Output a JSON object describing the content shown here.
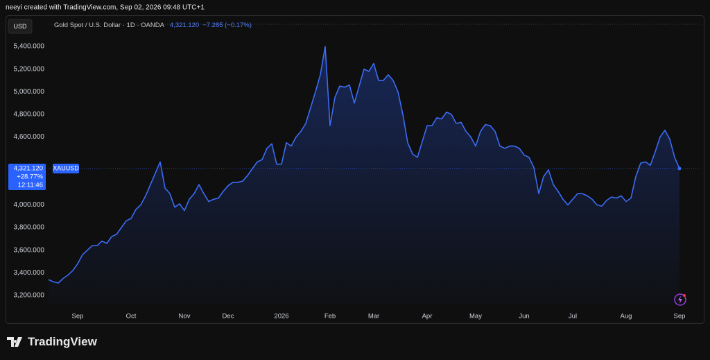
{
  "header": {
    "attribution": "neeyi created with TradingView.com, Sep 02, 2026 09:48 UTC+1"
  },
  "toolbar": {
    "currency": "USD"
  },
  "legend": {
    "symbol": "Gold Spot / U.S. Dollar · 1D · OANDA",
    "price": "4,321.120",
    "change": "−7.285 (−0.17%)"
  },
  "price_tag": {
    "price": "4,321.120",
    "change": "+28.77%",
    "countdown": "12:11:46",
    "symbol": "XAUUSD"
  },
  "footer": {
    "brand": "TradingView"
  },
  "chart_data": {
    "type": "area",
    "color": "#3b6cf5",
    "grid": false,
    "categories": [
      null,
      null,
      null,
      null,
      null,
      null,
      "Sep",
      null,
      null,
      null,
      null,
      null,
      null,
      null,
      null,
      null,
      null,
      "Oct",
      null,
      null,
      null,
      null,
      null,
      null,
      null,
      null,
      null,
      null,
      "Nov",
      null,
      null,
      null,
      null,
      null,
      null,
      null,
      null,
      "Dec",
      null,
      null,
      null,
      null,
      null,
      null,
      null,
      null,
      null,
      null,
      "2026",
      null,
      null,
      null,
      null,
      null,
      null,
      null,
      null,
      null,
      "Feb",
      null,
      null,
      null,
      null,
      null,
      null,
      null,
      null,
      "Mar",
      null,
      null,
      null,
      null,
      null,
      null,
      null,
      null,
      null,
      null,
      "Apr",
      null,
      null,
      null,
      null,
      null,
      null,
      null,
      null,
      null,
      "May",
      null,
      null,
      null,
      null,
      null,
      null,
      null,
      null,
      null,
      "Jun",
      null,
      null,
      null,
      null,
      null,
      null,
      null,
      null,
      null,
      "Jul",
      null,
      null,
      null,
      null,
      null,
      null,
      null,
      null,
      null,
      null,
      "Aug",
      null,
      null,
      null,
      null,
      null,
      null,
      null,
      null,
      null,
      null,
      "Sep"
    ],
    "values": [
      3340,
      3320,
      3310,
      3350,
      3380,
      3420,
      3480,
      3560,
      3600,
      3640,
      3640,
      3680,
      3660,
      3720,
      3740,
      3800,
      3860,
      3880,
      3960,
      4000,
      4080,
      4180,
      4280,
      4380,
      4150,
      4100,
      3980,
      4010,
      3950,
      4050,
      4100,
      4180,
      4100,
      4030,
      4050,
      4060,
      4120,
      4170,
      4200,
      4200,
      4210,
      4260,
      4320,
      4380,
      4400,
      4500,
      4540,
      4360,
      4360,
      4550,
      4520,
      4600,
      4650,
      4720,
      4860,
      5000,
      5150,
      5400,
      4700,
      4950,
      5050,
      5040,
      5060,
      4900,
      5050,
      5200,
      5180,
      5250,
      5100,
      5100,
      5150,
      5100,
      5000,
      4800,
      4550,
      4450,
      4420,
      4560,
      4700,
      4700,
      4770,
      4760,
      4820,
      4800,
      4720,
      4730,
      4650,
      4600,
      4520,
      4650,
      4710,
      4700,
      4650,
      4520,
      4500,
      4520,
      4520,
      4500,
      4440,
      4420,
      4330,
      4100,
      4250,
      4310,
      4180,
      4120,
      4050,
      4000,
      4050,
      4100,
      4100,
      4080,
      4050,
      4000,
      3990,
      4040,
      4070,
      4060,
      4080,
      4030,
      4060,
      4250,
      4370,
      4380,
      4350,
      4470,
      4600,
      4660,
      4580,
      4420,
      4321.12
    ],
    "ylim": [
      3114,
      5639
    ],
    "yticks": [
      {
        "value": 5400,
        "label": "5,400.000"
      },
      {
        "value": 5200,
        "label": "5,200.000"
      },
      {
        "value": 5000,
        "label": "5,000.000"
      },
      {
        "value": 4800,
        "label": "4,800.000"
      },
      {
        "value": 4600,
        "label": "4,600.000"
      },
      {
        "value": 4000,
        "label": "4,000.000"
      },
      {
        "value": 3800,
        "label": "3,800.000"
      },
      {
        "value": 3600,
        "label": "3,600.000"
      },
      {
        "value": 3400,
        "label": "3,400.000"
      },
      {
        "value": 3200,
        "label": "3,200.000"
      }
    ]
  }
}
